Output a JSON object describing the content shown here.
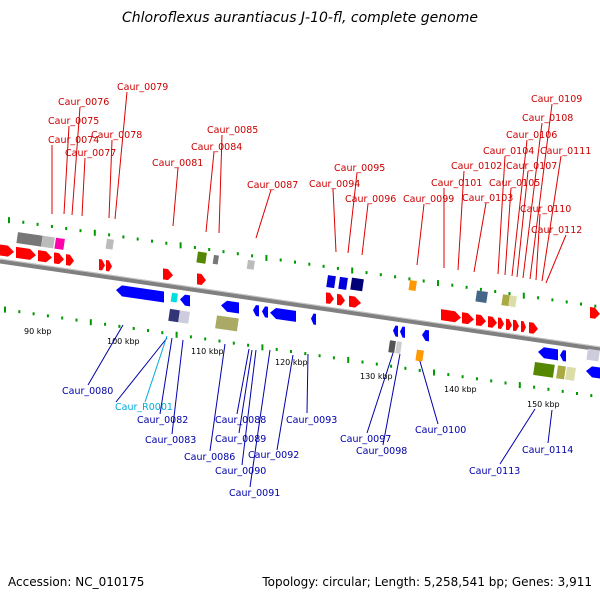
{
  "title": "Chloroflexus aurantiacus J-10-fl, complete genome",
  "footer": {
    "accession": "Accession: NC_010175",
    "topology": "Topology: circular; Length: 5,258,541 bp; Genes: 3,911"
  },
  "colors": {
    "forward_label": "#cc0000",
    "reverse_label": "#0000aa",
    "rna_label": "#00aadd",
    "backbone": "#808080",
    "ticks": "#009900"
  },
  "kbp_labels": [
    "90 kbp",
    "100 kbp",
    "110 kbp",
    "120 kbp",
    "130 kbp",
    "140 kbp",
    "150 kbp"
  ],
  "forward_labels": [
    "Caur_0074",
    "Caur_0075",
    "Caur_0076",
    "Caur_0077",
    "Caur_0078",
    "Caur_0079",
    "Caur_0081",
    "Caur_0084",
    "Caur_0085",
    "Caur_0087",
    "Caur_0094",
    "Caur_0095",
    "Caur_0096",
    "Caur_0099",
    "Caur_0101",
    "Caur_0102",
    "Caur_0103",
    "Caur_0104",
    "Caur_0105",
    "Caur_0106",
    "Caur_0107",
    "Caur_0108",
    "Caur_0109",
    "Caur_0110",
    "Caur_0111",
    "Caur_0112"
  ],
  "reverse_labels": [
    "Caur_0080",
    "Caur_R0001",
    "Caur_0082",
    "Caur_0083",
    "Caur_0086",
    "Caur_0088",
    "Caur_0089",
    "Caur_0090",
    "Caur_0091",
    "Caur_0092",
    "Caur_0093",
    "Caur_0097",
    "Caur_0098",
    "Caur_0100",
    "Caur_0113",
    "Caur_0114"
  ]
}
